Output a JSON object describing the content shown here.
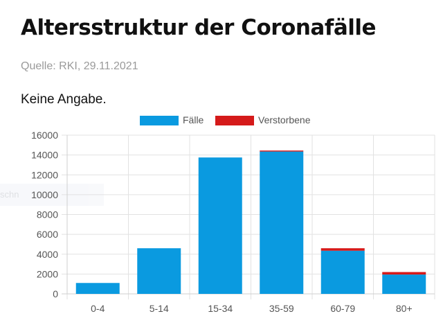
{
  "header": {
    "title": "Altersstruktur der Coronafälle",
    "source": "Quelle: RKI, 29.11.2021",
    "note": "Keine Angabe."
  },
  "ghost_text": "schn",
  "colors": {
    "faelle": "#0a9ae0",
    "verstorbene": "#d51a1a",
    "grid": "#e2e2e2"
  },
  "chart_data": {
    "type": "bar",
    "stacked": true,
    "categories": [
      "0-4",
      "5-14",
      "15-34",
      "35-59",
      "60-79",
      "80+"
    ],
    "series": [
      {
        "name": "Fälle",
        "values": [
          1100,
          4600,
          13750,
          14350,
          4350,
          1950
        ]
      },
      {
        "name": "Verstorbene",
        "values": [
          0,
          0,
          0,
          100,
          250,
          250
        ]
      }
    ],
    "ylim": [
      0,
      16000
    ],
    "yticks": [
      0,
      2000,
      4000,
      6000,
      8000,
      10000,
      12000,
      14000,
      16000
    ],
    "grid": true,
    "legend": "top-center",
    "title": "",
    "xlabel": "",
    "ylabel": ""
  }
}
